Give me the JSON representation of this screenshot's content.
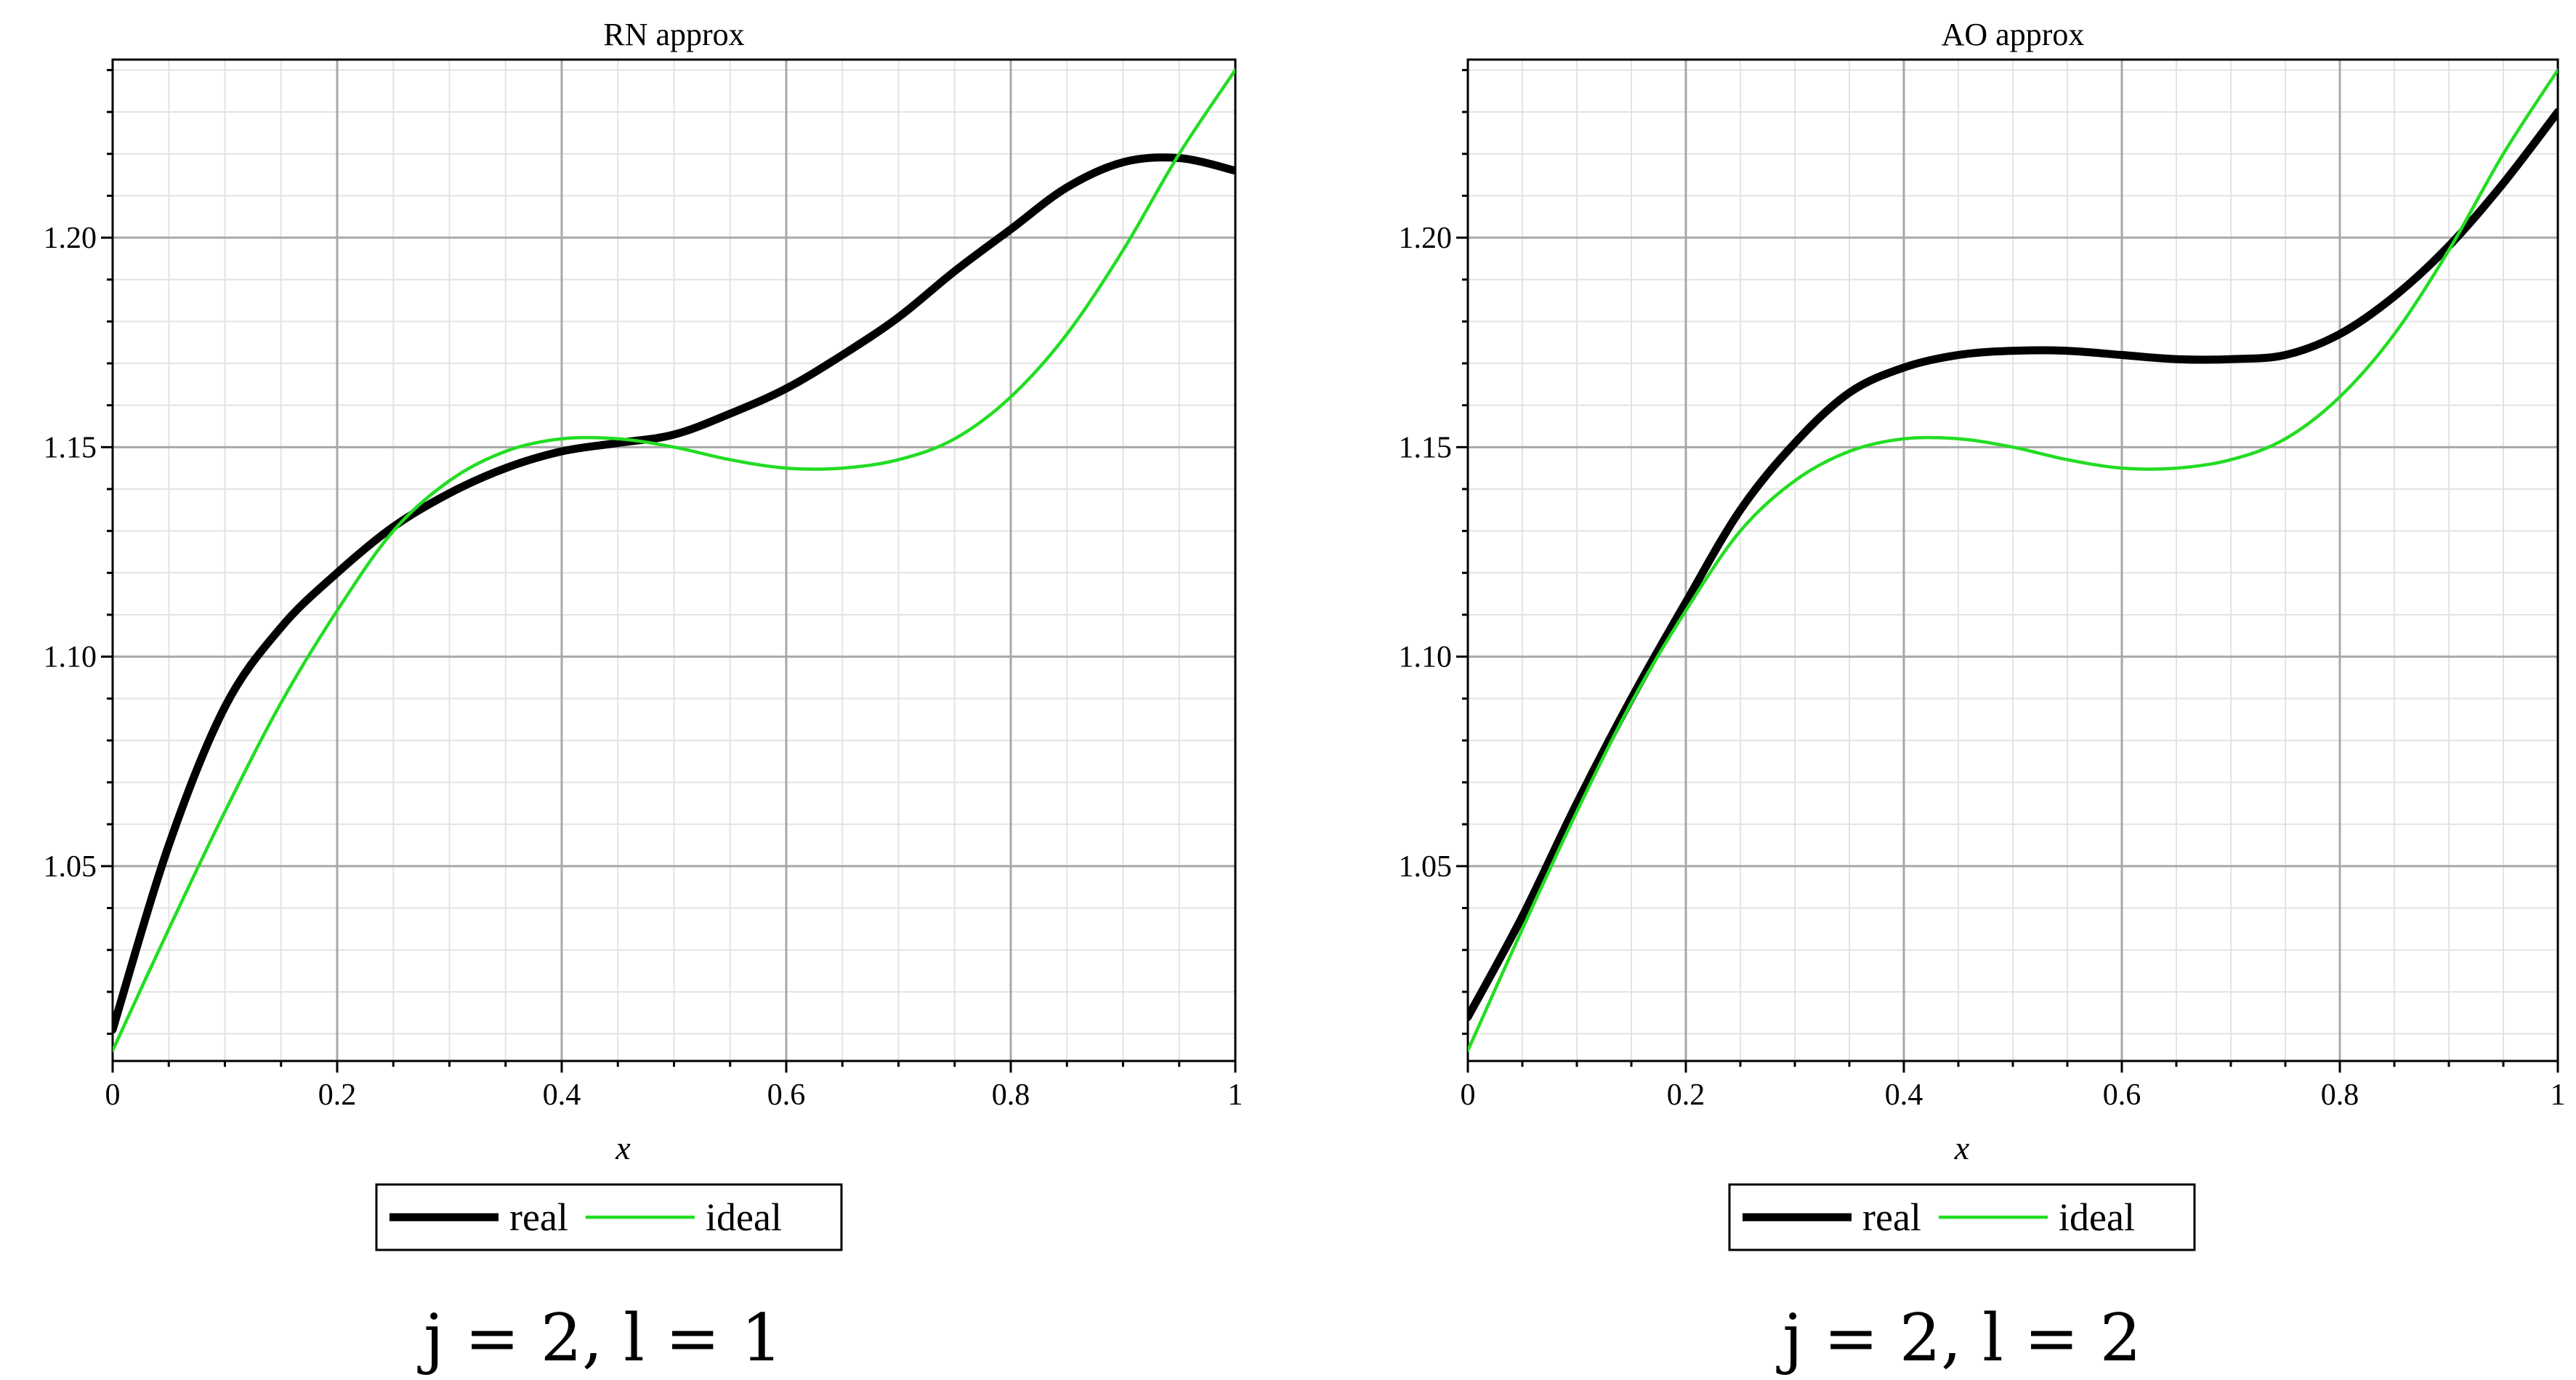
{
  "chart_data": [
    {
      "type": "line",
      "title": "RN  approx",
      "xlabel": "x",
      "ylabel": "",
      "xlim": [
        0,
        1
      ],
      "ylim": [
        1.0035,
        1.2425
      ],
      "xticks": [
        "0",
        "0.2",
        "0.4",
        "0.6",
        "0.8",
        "1"
      ],
      "yticks": [
        "1.05",
        "1.10",
        "1.15",
        "1.20"
      ],
      "grid": true,
      "legend_position": "bottom",
      "series": [
        {
          "name": "real",
          "color": "#000000",
          "x": [
            0,
            0.05,
            0.1,
            0.15,
            0.2,
            0.25,
            0.3,
            0.35,
            0.4,
            0.45,
            0.5,
            0.55,
            0.6,
            0.65,
            0.7,
            0.75,
            0.8,
            0.85,
            0.9,
            0.95,
            1.0
          ],
          "y": [
            1.011,
            1.055,
            1.088,
            1.107,
            1.12,
            1.131,
            1.139,
            1.145,
            1.149,
            1.151,
            1.153,
            1.158,
            1.164,
            1.172,
            1.181,
            1.192,
            1.202,
            1.212,
            1.218,
            1.219,
            1.216
          ]
        },
        {
          "name": "ideal",
          "color": "#22dd22",
          "x": [
            0,
            0.05,
            0.1,
            0.15,
            0.2,
            0.25,
            0.3,
            0.35,
            0.4,
            0.45,
            0.5,
            0.55,
            0.6,
            0.65,
            0.7,
            0.75,
            0.8,
            0.85,
            0.9,
            0.95,
            1.0
          ],
          "y": [
            1.006,
            1.035,
            1.063,
            1.089,
            1.111,
            1.13,
            1.142,
            1.149,
            1.152,
            1.152,
            1.15,
            1.147,
            1.145,
            1.145,
            1.147,
            1.152,
            1.162,
            1.177,
            1.197,
            1.22,
            1.24
          ]
        }
      ],
      "caption": "j = 2, l = 1"
    },
    {
      "type": "line",
      "title": "AO  approx",
      "xlabel": "x",
      "ylabel": "",
      "xlim": [
        0,
        1
      ],
      "ylim": [
        1.0035,
        1.2425
      ],
      "xticks": [
        "0",
        "0.2",
        "0.4",
        "0.6",
        "0.8",
        "1"
      ],
      "yticks": [
        "1.05",
        "1.10",
        "1.15",
        "1.20"
      ],
      "grid": true,
      "legend_position": "bottom",
      "series": [
        {
          "name": "real",
          "color": "#000000",
          "x": [
            0,
            0.05,
            0.1,
            0.15,
            0.2,
            0.25,
            0.3,
            0.35,
            0.4,
            0.45,
            0.5,
            0.55,
            0.6,
            0.65,
            0.7,
            0.75,
            0.8,
            0.85,
            0.9,
            0.95,
            1.0
          ],
          "y": [
            1.014,
            1.038,
            1.065,
            1.09,
            1.113,
            1.135,
            1.151,
            1.163,
            1.169,
            1.172,
            1.173,
            1.173,
            1.172,
            1.171,
            1.171,
            1.172,
            1.177,
            1.186,
            1.198,
            1.213,
            1.23
          ]
        },
        {
          "name": "ideal",
          "color": "#22dd22",
          "x": [
            0,
            0.05,
            0.1,
            0.15,
            0.2,
            0.25,
            0.3,
            0.35,
            0.4,
            0.45,
            0.5,
            0.55,
            0.6,
            0.65,
            0.7,
            0.75,
            0.8,
            0.85,
            0.9,
            0.95,
            1.0
          ],
          "y": [
            1.006,
            1.035,
            1.063,
            1.089,
            1.111,
            1.13,
            1.142,
            1.149,
            1.152,
            1.152,
            1.15,
            1.147,
            1.145,
            1.145,
            1.147,
            1.152,
            1.162,
            1.177,
            1.197,
            1.22,
            1.24
          ]
        }
      ],
      "caption": "j = 2, l = 2"
    }
  ]
}
